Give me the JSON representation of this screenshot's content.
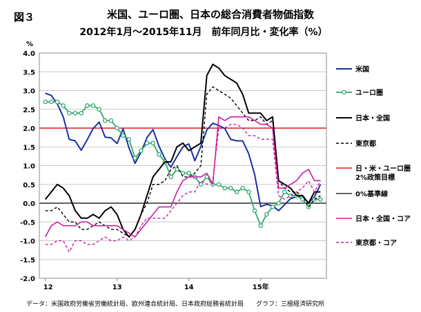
{
  "figure_label": "図３",
  "title_line1": "米国、ユーロ圏、日本の総合消費者物価指数",
  "title_line2": "2012年1月～2015年11月　前年同月比・変化率（%）",
  "source_note": "データ：米国政府労働省労働統計局、欧州連合統計局、日本政府総務省統計局　　グラフ：三極経済研究所",
  "chart_data": {
    "type": "line",
    "ylabel": "%",
    "ylim": [
      -2.0,
      4.0
    ],
    "yticks": [
      "4.0",
      "3.5",
      "3.0",
      "2.5",
      "2.0",
      "1.5",
      "1.0",
      "0.5",
      "0.0",
      "-0.5",
      "-1.0",
      "-1.5",
      "-2.0"
    ],
    "xlabels": [
      {
        "label": "12",
        "month": 1
      },
      {
        "label": "13",
        "month": 13
      },
      {
        "label": "14",
        "month": 25
      },
      {
        "label": "15年",
        "month": 37
      }
    ],
    "months": [
      1,
      2,
      3,
      4,
      5,
      6,
      7,
      8,
      9,
      10,
      11,
      12,
      13,
      14,
      15,
      16,
      17,
      18,
      19,
      20,
      21,
      22,
      23,
      24,
      25,
      26,
      27,
      28,
      29,
      30,
      31,
      32,
      33,
      34,
      35,
      36,
      37,
      38,
      39,
      40,
      41,
      42,
      43,
      44,
      45,
      46,
      47
    ],
    "series": [
      {
        "name": "米国",
        "color": "#1a2f9e",
        "dash": "solid",
        "marker": "none",
        "width": 2,
        "values": [
          2.93,
          2.87,
          2.65,
          2.3,
          1.7,
          1.66,
          1.41,
          1.69,
          1.99,
          2.16,
          1.76,
          1.74,
          1.59,
          1.98,
          1.47,
          1.06,
          1.36,
          1.75,
          1.96,
          1.52,
          1.18,
          0.96,
          1.24,
          1.5,
          1.58,
          1.13,
          1.51,
          1.95,
          2.13,
          2.07,
          1.99,
          1.7,
          1.66,
          1.66,
          1.32,
          0.76,
          -0.09,
          -0.03,
          -0.07,
          -0.2,
          -0.04,
          0.12,
          0.17,
          0.2,
          0.0,
          0.17,
          0.5
        ]
      },
      {
        "name": "ユーロ圏",
        "color": "#2ea86a",
        "dash": "solid",
        "marker": "circle",
        "width": 1.8,
        "values": [
          2.7,
          2.7,
          2.7,
          2.6,
          2.4,
          2.4,
          2.4,
          2.6,
          2.6,
          2.5,
          2.2,
          2.2,
          2.0,
          1.8,
          1.7,
          1.2,
          1.4,
          1.6,
          1.6,
          1.3,
          1.1,
          0.7,
          0.9,
          0.8,
          0.8,
          0.7,
          0.5,
          0.7,
          0.5,
          0.5,
          0.4,
          0.4,
          0.3,
          0.4,
          0.3,
          -0.2,
          -0.6,
          -0.3,
          -0.1,
          0.0,
          0.3,
          0.2,
          0.2,
          0.1,
          -0.1,
          0.1,
          0.1
        ]
      },
      {
        "name": "日本・全国",
        "color": "#000000",
        "dash": "solid",
        "marker": "none",
        "width": 2,
        "values": [
          0.1,
          0.3,
          0.5,
          0.4,
          0.2,
          -0.2,
          -0.4,
          -0.4,
          -0.3,
          -0.4,
          -0.2,
          -0.1,
          -0.3,
          -0.7,
          -0.9,
          -0.7,
          -0.3,
          0.2,
          0.7,
          0.9,
          1.1,
          1.1,
          1.5,
          1.6,
          1.4,
          1.5,
          1.6,
          3.4,
          3.7,
          3.6,
          3.4,
          3.3,
          3.2,
          2.9,
          2.4,
          2.4,
          2.4,
          2.2,
          2.3,
          0.6,
          0.5,
          0.4,
          0.2,
          0.2,
          0.0,
          0.3,
          0.3
        ]
      },
      {
        "name": "東京都",
        "color": "#000000",
        "dash": "4,3",
        "marker": "none",
        "width": 1.4,
        "values": [
          -0.2,
          -0.2,
          -0.1,
          -0.3,
          -0.5,
          -0.5,
          -0.7,
          -0.7,
          -0.6,
          -0.5,
          -0.6,
          -0.7,
          -0.7,
          -0.8,
          -0.9,
          -0.7,
          -0.3,
          0.0,
          0.5,
          0.5,
          0.6,
          0.9,
          1.0,
          0.7,
          0.7,
          0.8,
          1.0,
          2.9,
          3.1,
          3.0,
          2.9,
          2.8,
          2.6,
          2.4,
          2.2,
          2.2,
          2.3,
          2.1,
          2.2,
          0.6,
          0.4,
          0.3,
          0.3,
          0.2,
          -0.1,
          0.1,
          0.2
        ]
      },
      {
        "name": "日・米・ユーロ圏\n2%政策目標",
        "color": "#d81b1b",
        "dash": "solid",
        "marker": "none",
        "width": 1.6,
        "constant": 2.0
      },
      {
        "name": "0%基準線",
        "color": "#000000",
        "dash": "solid",
        "marker": "none",
        "width": 1.2,
        "constant": 0.0
      },
      {
        "name": "日本・全国・コア",
        "color": "#c81ea0",
        "dash": "solid",
        "marker": "none",
        "width": 1.6,
        "values": [
          -0.9,
          -0.6,
          -0.5,
          -0.6,
          -0.6,
          -0.6,
          -0.5,
          -0.5,
          -0.6,
          -0.6,
          -0.6,
          -0.6,
          -0.6,
          -0.7,
          -0.8,
          -0.9,
          -0.7,
          -0.5,
          -0.3,
          -0.1,
          -0.1,
          -0.1,
          0.3,
          0.6,
          0.7,
          0.7,
          0.7,
          0.8,
          0.5,
          2.3,
          2.2,
          2.3,
          2.3,
          2.3,
          2.3,
          2.2,
          2.1,
          2.1,
          2.0,
          0.4,
          0.4,
          0.5,
          0.6,
          0.8,
          0.9,
          0.6,
          0.6
        ]
      },
      {
        "name": "東京都・コア",
        "color": "#c81ea0",
        "dash": "4,3",
        "marker": "none",
        "width": 1.4,
        "values": [
          -1.1,
          -1.1,
          -1.0,
          -1.0,
          -1.3,
          -1.0,
          -1.0,
          -1.1,
          -1.1,
          -1.0,
          -0.9,
          -1.0,
          -1.0,
          -0.9,
          -1.0,
          -0.9,
          -0.6,
          -0.4,
          -0.4,
          -0.4,
          -0.4,
          -0.2,
          0.0,
          0.2,
          0.3,
          0.3,
          0.6,
          0.5,
          0.6,
          2.0,
          2.0,
          2.1,
          2.1,
          2.0,
          1.8,
          1.8,
          1.7,
          1.7,
          1.7,
          0.2,
          0.1,
          0.2,
          0.3,
          0.4,
          0.6,
          0.3,
          0.6
        ]
      }
    ]
  }
}
